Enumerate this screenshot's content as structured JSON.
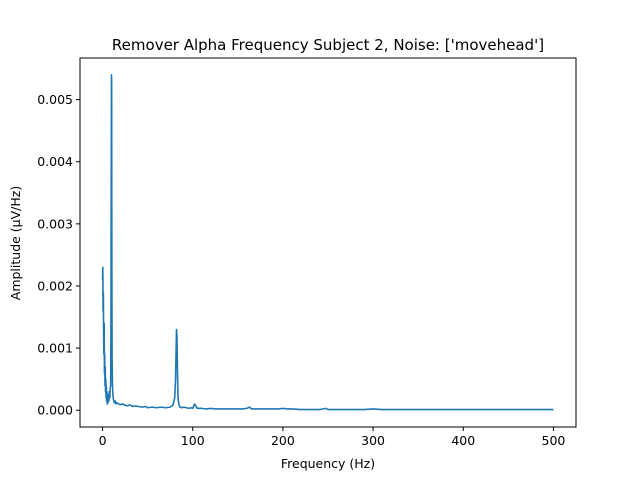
{
  "chart_data": {
    "type": "line",
    "title": "Remover Alpha Frequency Subject 2, Noise: ['movehead']",
    "xlabel": "Frequency (Hz)",
    "ylabel": "Amplitude (μV/Hz)",
    "xlim": [
      -25,
      525
    ],
    "ylim": [
      -0.00027,
      0.00567
    ],
    "x_ticks": [
      0,
      100,
      200,
      300,
      400,
      500
    ],
    "x_tick_labels": [
      "0",
      "100",
      "200",
      "300",
      "400",
      "500"
    ],
    "y_ticks": [
      0.0,
      0.001,
      0.002,
      0.003,
      0.004,
      0.005
    ],
    "y_tick_labels": [
      "0.000",
      "0.001",
      "0.002",
      "0.003",
      "0.004",
      "0.005"
    ],
    "grid": false,
    "line_color": "#1f77b4",
    "series": [
      {
        "x": [
          0,
          0.3,
          0.6,
          0.9,
          1.2,
          1.5,
          1.8,
          2.1,
          2.4,
          2.7,
          3.0,
          3.3,
          3.6,
          3.9,
          4.2,
          4.5,
          4.8,
          5.2,
          5.6,
          6.0,
          6.5,
          7.0,
          7.5,
          8.0,
          8.5,
          9.0,
          9.3,
          9.6,
          9.9,
          10.1,
          10.3,
          10.6,
          11.0,
          11.5,
          12,
          13,
          14,
          15,
          16,
          18,
          20,
          22,
          25,
          28,
          30,
          33,
          36,
          40,
          44,
          48,
          50,
          55,
          60,
          65,
          70,
          75,
          78,
          80,
          81,
          82,
          82.5,
          83,
          83.5,
          84,
          85,
          86,
          88,
          90,
          93,
          96,
          98,
          100,
          102,
          105,
          110,
          115,
          120,
          125,
          130,
          135,
          140,
          145,
          150,
          155,
          160,
          163,
          165,
          167,
          170,
          175,
          180,
          185,
          190,
          195,
          200,
          205,
          210,
          220,
          230,
          240,
          248,
          250,
          255,
          260,
          270,
          280,
          290,
          300,
          310,
          320,
          330,
          340,
          350,
          360,
          370,
          380,
          390,
          400,
          410,
          420,
          430,
          440,
          450,
          460,
          470,
          480,
          490,
          500
        ],
        "values": [
          0.0021,
          0.0023,
          0.0016,
          0.0019,
          0.0012,
          0.0009,
          0.0014,
          0.0006,
          0.0009,
          0.0004,
          0.0007,
          0.0003,
          0.0005,
          0.0002,
          0.0004,
          0.00015,
          0.0003,
          0.0001,
          0.00025,
          0.00012,
          0.0002,
          0.00015,
          0.0003,
          0.0002,
          0.00035,
          0.0004,
          0.0012,
          0.0035,
          0.0054,
          0.0053,
          0.0025,
          0.0008,
          0.0004,
          0.00025,
          0.00018,
          0.00012,
          0.00015,
          0.0001,
          0.00012,
          0.0001,
          9e-05,
          0.0001,
          8e-05,
          7e-05,
          9e-05,
          6e-05,
          7e-05,
          6e-05,
          5e-05,
          6e-05,
          4e-05,
          5e-05,
          4e-05,
          5e-05,
          4e-05,
          5e-05,
          8e-05,
          0.0002,
          0.0005,
          0.0013,
          0.0012,
          0.0007,
          0.0003,
          0.00015,
          8e-05,
          5e-05,
          4e-05,
          5e-05,
          4e-05,
          3e-05,
          4e-05,
          3e-05,
          0.0001,
          3e-05,
          3e-05,
          2e-05,
          3e-05,
          2e-05,
          2e-05,
          2e-05,
          2e-05,
          2e-05,
          2e-05,
          2e-05,
          3e-05,
          5e-05,
          2e-05,
          2e-05,
          2e-05,
          2e-05,
          2e-05,
          2e-05,
          2e-05,
          2e-05,
          3e-05,
          2e-05,
          2e-05,
          1e-05,
          1e-05,
          1e-05,
          3e-05,
          1e-05,
          1e-05,
          1e-05,
          1e-05,
          1e-05,
          1e-05,
          2e-05,
          1e-05,
          1e-05,
          1e-05,
          1e-05,
          1e-05,
          1e-05,
          1e-05,
          1e-05,
          1e-05,
          1e-05,
          1e-05,
          1e-05,
          1e-05,
          1e-05,
          1e-05,
          1e-05,
          1e-05,
          1e-05,
          1e-05,
          1e-05
        ]
      }
    ]
  }
}
